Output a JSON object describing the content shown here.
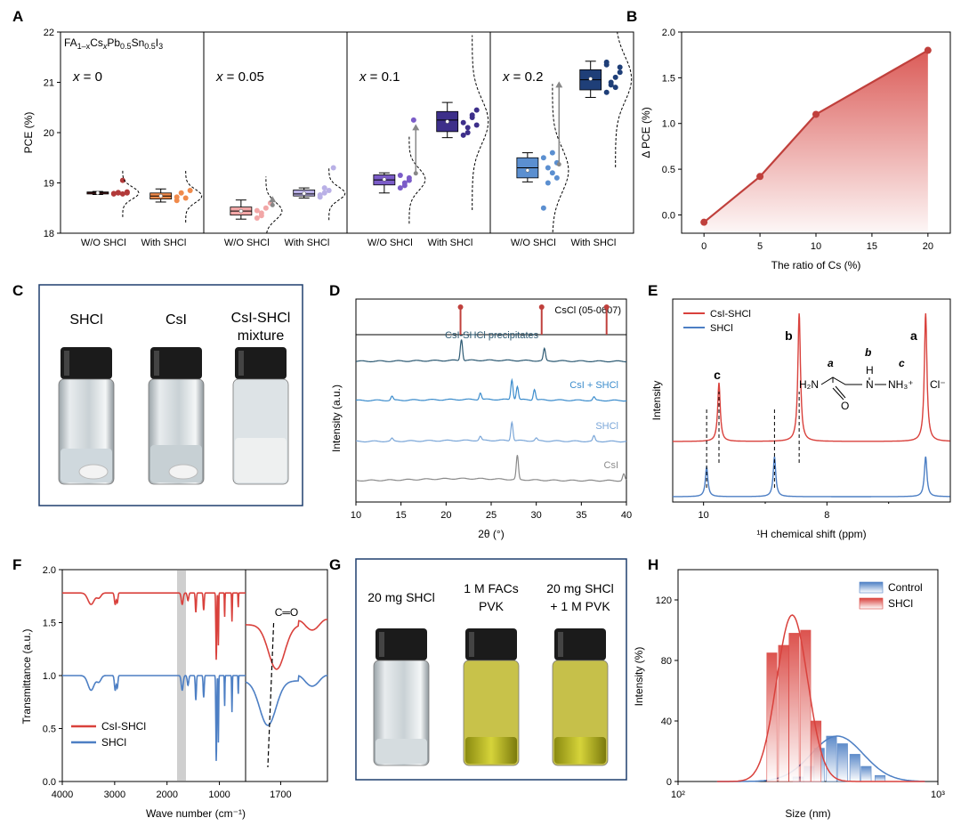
{
  "figure": {
    "panel_letters": [
      "A",
      "B",
      "C",
      "D",
      "E",
      "F",
      "G",
      "H"
    ]
  },
  "chart_data": [
    {
      "id": "A",
      "type": "box",
      "ylabel": "PCE (%)",
      "ylim": [
        18,
        22
      ],
      "yticks": [
        "18",
        "19",
        "20",
        "21",
        "22"
      ],
      "formula": {
        "base": "FA",
        "sub1": "1–x",
        "cs": "Cs",
        "sub2": "x",
        "rest": "Pb",
        "sub3": "0.5",
        "sn": "Sn",
        "sub4": "0.5",
        "i": "I",
        "sub5": "3"
      },
      "categories": [
        "W/O SHCl",
        "With SHCl",
        "W/O SHCl",
        "With SHCl",
        "W/O SHCl",
        "With SHCl",
        "W/O SHCl",
        "With SHCl"
      ],
      "groups": [
        {
          "label_var": "x",
          "label_val": " = 0",
          "wo": {
            "color": "#b23a3a",
            "q1": 18.78,
            "median": 18.8,
            "q3": 18.82,
            "min": 18.77,
            "max": 18.83,
            "mean": 18.8,
            "points": [
              18.78,
              18.8,
              19.05,
              18.82,
              18.79,
              18.81,
              18.78,
              18.8
            ]
          },
          "w": {
            "color": "#f08a4b",
            "q1": 18.68,
            "median": 18.74,
            "q3": 18.8,
            "min": 18.62,
            "max": 18.88,
            "mean": 18.74,
            "points": [
              18.65,
              18.8,
              18.7,
              18.85,
              18.72
            ]
          }
        },
        {
          "label_var": "x",
          "label_val": " = 0.05",
          "wo": {
            "color": "#f2a7a7",
            "q1": 18.36,
            "median": 18.44,
            "q3": 18.52,
            "min": 18.28,
            "max": 18.66,
            "mean": 18.44,
            "points": [
              18.3,
              18.4,
              18.5,
              18.6,
              18.45,
              18.35
            ]
          },
          "w": {
            "color": "#b9b0e6",
            "q1": 18.74,
            "median": 18.78,
            "q3": 18.86,
            "min": 18.7,
            "max": 18.9,
            "mean": 18.79,
            "points": [
              18.72,
              18.8,
              18.85,
              19.3,
              18.76,
              18.9
            ]
          }
        },
        {
          "label_var": "x",
          "label_val": " = 0.1",
          "wo": {
            "color": "#7b5cc8",
            "q1": 18.96,
            "median": 19.06,
            "q3": 19.16,
            "min": 18.8,
            "max": 19.2,
            "mean": 19.07,
            "points": [
              18.9,
              19.0,
              19.1,
              20.25,
              19.15,
              18.95,
              19.05
            ]
          },
          "w": {
            "color": "#3d2f8a",
            "q1": 20.02,
            "median": 20.25,
            "q3": 20.42,
            "min": 19.9,
            "max": 20.6,
            "mean": 20.22,
            "points": [
              19.95,
              20.1,
              20.3,
              20.45,
              20.2,
              20.0,
              20.35,
              20.15
            ]
          }
        },
        {
          "label_var": "x",
          "label_val": " = 0.2",
          "wo": {
            "color": "#5b8fd0",
            "q1": 19.1,
            "median": 19.3,
            "q3": 19.5,
            "min": 19.02,
            "max": 19.6,
            "mean": 19.25,
            "points": [
              18.5,
              19.0,
              19.2,
              19.4,
              19.5,
              19.3,
              19.6,
              19.1
            ]
          },
          "w": {
            "color": "#1f3f78",
            "q1": 20.85,
            "median": 21.05,
            "q3": 21.25,
            "min": 20.7,
            "max": 21.42,
            "mean": 21.07,
            "points": [
              20.8,
              20.95,
              21.1,
              21.3,
              21.4,
              21.0,
              20.9,
              21.2,
              21.35
            ]
          }
        }
      ]
    },
    {
      "id": "B",
      "type": "area",
      "xlabel": "The ratio of Cs (%)",
      "ylabel": "Δ PCE (%)",
      "xlim": [
        -2,
        22
      ],
      "ylim": [
        -0.2,
        2.0
      ],
      "xticks": [
        "0",
        "5",
        "10",
        "15",
        "20"
      ],
      "yticks": [
        "0.0",
        "0.5",
        "1.0",
        "1.5",
        "2.0"
      ],
      "x": [
        0,
        5,
        10,
        20
      ],
      "y": [
        -0.08,
        0.42,
        1.1,
        1.8
      ],
      "color": "#c0403c"
    },
    {
      "id": "D",
      "type": "line",
      "xlabel": "2θ (°)",
      "ylabel": "Intensity (a.u.)",
      "xlim": [
        10,
        40
      ],
      "xticks": [
        "10",
        "15",
        "20",
        "25",
        "30",
        "35",
        "40"
      ],
      "reference": {
        "label": "CsCl (05-0607)",
        "peaks": [
          21.6,
          30.6,
          37.8
        ],
        "color": "#c0403c"
      },
      "series": [
        {
          "name": "CsI-SHCl precipitates",
          "color": "#2d5a73",
          "offset": 3,
          "peaks": [
            [
              21.7,
              1.6
            ],
            [
              30.9,
              0.9
            ]
          ]
        },
        {
          "name": "CsI + SHCl",
          "color": "#3b8ccc",
          "offset": 2,
          "peaks": [
            [
              14.0,
              0.3
            ],
            [
              23.8,
              0.5
            ],
            [
              27.3,
              1.5
            ],
            [
              27.9,
              1.0
            ],
            [
              29.8,
              0.8
            ],
            [
              36.4,
              0.25
            ]
          ]
        },
        {
          "name": "SHCl",
          "color": "#7aa6d8",
          "offset": 1,
          "peaks": [
            [
              14.0,
              0.2
            ],
            [
              23.8,
              0.3
            ],
            [
              27.3,
              1.4
            ],
            [
              30.0,
              0.2
            ],
            [
              36.4,
              0.4
            ]
          ]
        },
        {
          "name": "CsI",
          "color": "#8a8a8a",
          "offset": 0,
          "peaks": [
            [
              27.9,
              1.8
            ],
            [
              39.7,
              0.5
            ]
          ]
        }
      ]
    },
    {
      "id": "E",
      "type": "line",
      "xlabel": "¹H chemical shift (ppm)",
      "ylabel": "Intensity",
      "xlim": [
        10.5,
        6.0
      ],
      "xticks": [
        "10",
        "8"
      ],
      "series": [
        {
          "name": "CsI-SHCl",
          "color": "#d9413c",
          "offset": 1,
          "peaks": [
            [
              9.75,
              1.1
            ],
            [
              8.45,
              2.4
            ],
            [
              6.4,
              2.4
            ]
          ]
        },
        {
          "name": "SHCl",
          "color": "#4d7fc4",
          "offset": 0,
          "peaks": [
            [
              9.95,
              0.55
            ],
            [
              8.85,
              0.75
            ],
            [
              6.4,
              0.75
            ]
          ]
        }
      ],
      "peak_labels": [
        {
          "text": "c",
          "ppm": 9.95
        },
        {
          "text": "b",
          "ppm": 8.5
        },
        {
          "text": "a",
          "ppm": 6.45
        }
      ],
      "molecule": {
        "a": "a",
        "b": "b",
        "c": "c",
        "h2n": "H₂N",
        "h": "H",
        "n": "N",
        "nh3": "NH₃⁺",
        "o": "O",
        "cl": "Cl⁻"
      }
    },
    {
      "id": "F",
      "type": "line",
      "xlabel": "Wave number (cm⁻¹)",
      "ylabel": "Transmittance (a.u.)",
      "ylim": [
        0.0,
        2.0
      ],
      "xlim_main": [
        4000,
        500
      ],
      "xticks_main": [
        "4000",
        "3000",
        "2000",
        "1000"
      ],
      "xlim_zoom": [
        1760,
        1620
      ],
      "xticks_zoom": [
        "1700"
      ],
      "yticks": [
        "0.0",
        "0.5",
        "1.0",
        "1.5",
        "2.0"
      ],
      "zoom_annotation": "C═O",
      "series": [
        {
          "name": "CsI-SHCl",
          "color": "#d9413c",
          "baseline": 1.78
        },
        {
          "name": "SHCl",
          "color": "#4d7fc4",
          "baseline": 1.0
        }
      ]
    },
    {
      "id": "H",
      "type": "bar",
      "xlabel": "Size (nm)",
      "ylabel": "Intensity (%)",
      "xscale": "log",
      "xlim": [
        100,
        1000
      ],
      "ylim": [
        0,
        140
      ],
      "xticks": [
        "10²",
        "10³"
      ],
      "yticks": [
        "0",
        "40",
        "80",
        "120"
      ],
      "legend_position": "top-right",
      "series": [
        {
          "name": "Control",
          "color": "#4d7fc4",
          "x": [
            290,
            320,
            350,
            390,
            430,
            480,
            530,
            600
          ],
          "values": [
            3,
            10,
            22,
            30,
            25,
            18,
            10,
            4
          ]
        },
        {
          "name": "SHCl",
          "color": "#d9413c",
          "x": [
            230,
            255,
            280,
            310,
            340
          ],
          "values": [
            85,
            90,
            98,
            100,
            40
          ]
        }
      ]
    }
  ],
  "photos": {
    "C": {
      "labels": [
        "SHCl",
        "CsI",
        "CsI-SHCl",
        "mixture"
      ]
    },
    "G": {
      "labels": [
        "20 mg SHCl",
        "1 M FACs",
        "PVK",
        "20 mg SHCl",
        "+ 1 M PVK"
      ]
    }
  }
}
